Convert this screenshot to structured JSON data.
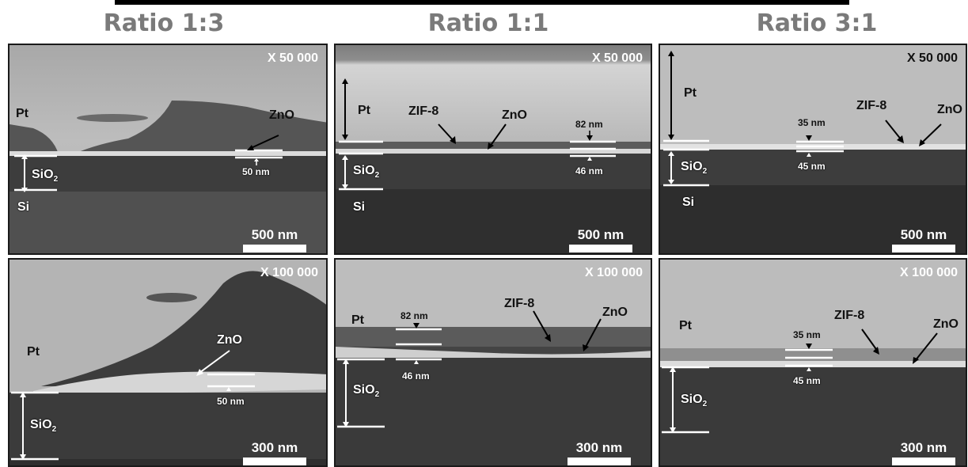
{
  "columns": [
    {
      "title": "Ratio 1:3"
    },
    {
      "title": "Ratio 1:1"
    },
    {
      "title": "Ratio 3:1"
    }
  ],
  "panels": {
    "r13_top": {
      "mag": "X 50 000",
      "pt": "Pt",
      "zno": "ZnO",
      "sio2": "SiO",
      "sub": "2",
      "si": "Si",
      "dim1": "50 nm",
      "scale": "500 nm"
    },
    "r11_top": {
      "mag": "X 50 000",
      "pt": "Pt",
      "zif": "ZIF-8",
      "zno": "ZnO",
      "sio2": "SiO",
      "sub": "2",
      "si": "Si",
      "dim1": "82 nm",
      "dim2": "46 nm",
      "scale": "500 nm"
    },
    "r31_top": {
      "mag": "X 50 000",
      "pt": "Pt",
      "zif": "ZIF-8",
      "zno": "ZnO",
      "sio2": "SiO",
      "sub": "2",
      "si": "Si",
      "dim1": "35 nm",
      "dim2": "45 nm",
      "scale": "500 nm"
    },
    "r13_bot": {
      "mag": "X 100 000",
      "pt": "Pt",
      "zno": "ZnO",
      "sio2": "SiO",
      "sub": "2",
      "dim1": "50 nm",
      "scale": "300 nm"
    },
    "r11_bot": {
      "mag": "X 100 000",
      "pt": "Pt",
      "zif": "ZIF-8",
      "zno": "ZnO",
      "sio2": "SiO",
      "sub": "2",
      "dim1": "82 nm",
      "dim2": "46 nm",
      "scale": "300 nm"
    },
    "r31_bot": {
      "mag": "X 100 000",
      "pt": "Pt",
      "zif": "ZIF-8",
      "zno": "ZnO",
      "sio2": "SiO",
      "sub": "2",
      "dim1": "35 nm",
      "dim2": "45 nm",
      "scale": "300 nm"
    }
  }
}
